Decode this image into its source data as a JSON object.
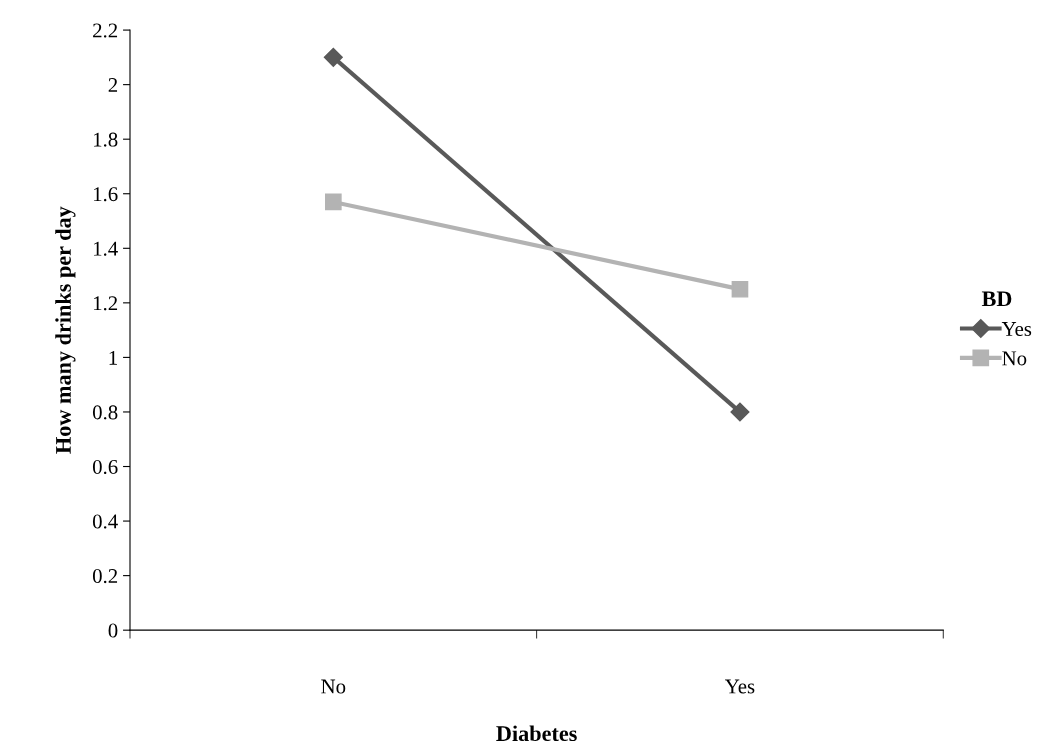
{
  "chart_data": {
    "type": "line",
    "xlabel": "Diabetes",
    "ylabel": "How many drinks per day",
    "legend_title": "BD",
    "categories": [
      "No",
      "Yes"
    ],
    "series": [
      {
        "name": "Yes",
        "color": "#595959",
        "values": [
          2.1,
          0.8
        ],
        "marker": "diamond"
      },
      {
        "name": "No",
        "color": "#b3b3b3",
        "values": [
          1.57,
          1.25
        ],
        "marker": "square"
      }
    ],
    "ylim": [
      0,
      2.2
    ],
    "yticks": [
      0,
      0.2,
      0.4,
      0.6,
      0.8,
      1,
      1.2,
      1.4,
      1.6,
      1.8,
      2,
      2.2
    ],
    "grid": false,
    "legend": "right",
    "line_style": "solid"
  }
}
